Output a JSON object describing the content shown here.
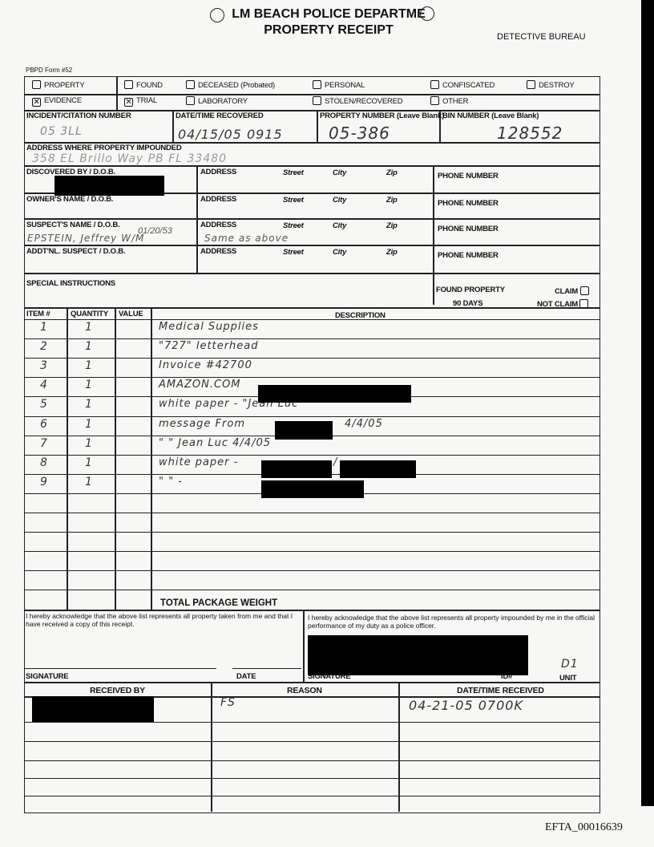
{
  "header": {
    "title_line1": "LM BEACH POLICE DEPARTME",
    "title_line2": "PROPERTY RECEIPT",
    "bureau": "DETECTIVE BUREAU",
    "form_no": "PBPD Form #52"
  },
  "checkboxes": [
    {
      "label": "PROPERTY",
      "checked": false
    },
    {
      "label": "FOUND",
      "checked": false
    },
    {
      "label": "DECEASED (Probated)",
      "checked": false
    },
    {
      "label": "PERSONAL",
      "checked": false
    },
    {
      "label": "CONFISCATED",
      "checked": false
    },
    {
      "label": "DESTROY",
      "checked": false
    },
    {
      "label": "EVIDENCE",
      "checked": true
    },
    {
      "label": "TRIAL",
      "checked": true
    },
    {
      "label": "LABORATORY",
      "checked": false
    },
    {
      "label": "STOLEN/RECOVERED",
      "checked": false
    },
    {
      "label": "OTHER",
      "checked": false
    }
  ],
  "incident": {
    "label": "INCIDENT/CITATION NUMBER",
    "value": "05 3LL"
  },
  "date_recovered": {
    "label": "DATE/TIME RECOVERED",
    "value": "04/15/05   0915"
  },
  "property_number": {
    "label": "PROPERTY NUMBER (Leave Blank)",
    "value": "05-386"
  },
  "bin_number": {
    "label": "BIN NUMBER (Leave Blank)",
    "value": "128552"
  },
  "address_impounded": {
    "label": "ADDRESS WHERE PROPERTY IMPOUNDED",
    "value": "358 EL Brillo Way  PB  FL 33480"
  },
  "parties": {
    "address_label": "ADDRESS",
    "street": "Street",
    "city": "City",
    "zip": "Zip",
    "phone": "PHONE NUMBER",
    "discovered_by": "DISCOVERED BY / D.O.B.",
    "owner": "OWNER'S NAME / D.O.B.",
    "suspect": "SUSPECT'S NAME / D.O.B.",
    "suspect_dob": "01/20/53",
    "suspect_name": "EPSTEIN, Jeffrey  W/M",
    "suspect_address": "Same as above",
    "addtl": "ADDT'NL. SUSPECT / D.O.B."
  },
  "special": {
    "label": "SPECIAL INSTRUCTIONS",
    "found": "FOUND PROPERTY",
    "days": "90 DAYS",
    "claim": "CLAIM",
    "not_claim": "NOT CLAIM"
  },
  "items": {
    "headers": [
      "ITEM #",
      "QUANTITY",
      "VALUE",
      "DESCRIPTION"
    ],
    "rows": [
      {
        "item": "1",
        "qty": "1",
        "desc": "Medical Supplies"
      },
      {
        "item": "2",
        "qty": "1",
        "desc": "\"727\" letterhead"
      },
      {
        "item": "3",
        "qty": "1",
        "desc": "Invoice #42700"
      },
      {
        "item": "4",
        "qty": "1",
        "desc": "AMAZON.COM"
      },
      {
        "item": "5",
        "qty": "1",
        "desc": "white paper - \"Jean Luc\""
      },
      {
        "item": "6",
        "qty": "1",
        "desc": "message From",
        "desc2": "4/4/05"
      },
      {
        "item": "7",
        "qty": "1",
        "desc": "\"         \"        Jean Luc  4/4/05"
      },
      {
        "item": "8",
        "qty": "1",
        "desc": "white paper -",
        "desc2": "/"
      },
      {
        "item": "9",
        "qty": "1",
        "desc": "\"       \"     -"
      }
    ],
    "total": "TOTAL PACKAGE WEIGHT"
  },
  "ack": {
    "left": "I hereby acknowledge that the above list represents all property taken from me and that I have received a copy of this receipt.",
    "right": "I hereby acknowledge that the above list represents all property impounded by me in the official performance of my duty as a police officer.",
    "signature": "SIGNATURE",
    "date": "DATE",
    "signature2": "SIGNATURE",
    "id": "ID#",
    "unit": "UNIT",
    "unit_value": "D1"
  },
  "received": {
    "headers": [
      "RECEIVED BY",
      "REASON",
      "DATE/TIME RECEIVED"
    ],
    "reason": "FS",
    "datetime": "04-21-05    0700K"
  },
  "footer": "EFTA_00016639"
}
